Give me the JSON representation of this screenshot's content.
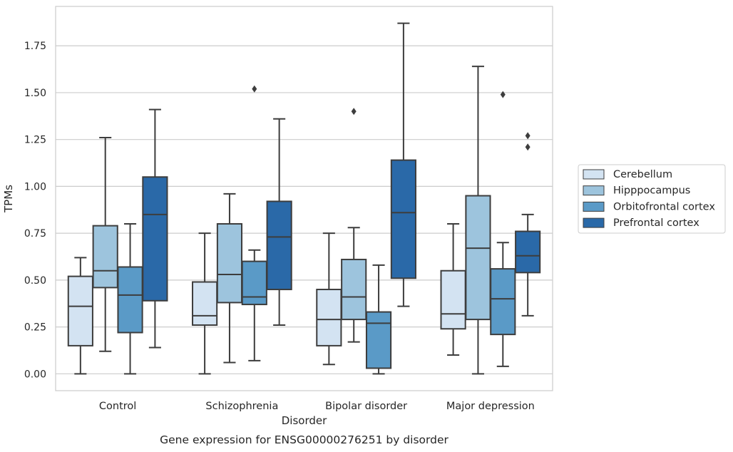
{
  "chart_data": {
    "type": "box",
    "caption": "Gene expression for ENSG00000276251 by disorder",
    "xlabel": "Disorder",
    "ylabel": "TPMs",
    "ylim": [
      -0.09,
      1.96
    ],
    "yticks": [
      "0.00",
      "0.25",
      "0.50",
      "0.75",
      "1.00",
      "1.25",
      "1.50",
      "1.75"
    ],
    "grid": "horizontal",
    "legend_position": "right",
    "categories": [
      "Control",
      "Schizophrenia",
      "Bipolar disorder",
      "Major depression"
    ],
    "series": [
      {
        "name": "Cerebellum",
        "color": "#d3e3f2",
        "boxes": [
          {
            "whislo": 0.0,
            "q1": 0.15,
            "med": 0.36,
            "q3": 0.52,
            "whishi": 0.62,
            "fliers": []
          },
          {
            "whislo": 0.0,
            "q1": 0.26,
            "med": 0.31,
            "q3": 0.49,
            "whishi": 0.75,
            "fliers": []
          },
          {
            "whislo": 0.05,
            "q1": 0.15,
            "med": 0.29,
            "q3": 0.45,
            "whishi": 0.75,
            "fliers": []
          },
          {
            "whislo": 0.1,
            "q1": 0.24,
            "med": 0.32,
            "q3": 0.55,
            "whishi": 0.8,
            "fliers": []
          }
        ]
      },
      {
        "name": "Hipppocampus",
        "color": "#9dc4dd",
        "boxes": [
          {
            "whislo": 0.12,
            "q1": 0.46,
            "med": 0.55,
            "q3": 0.79,
            "whishi": 1.26,
            "fliers": []
          },
          {
            "whislo": 0.06,
            "q1": 0.38,
            "med": 0.53,
            "q3": 0.8,
            "whishi": 0.96,
            "fliers": []
          },
          {
            "whislo": 0.17,
            "q1": 0.29,
            "med": 0.41,
            "q3": 0.61,
            "whishi": 0.78,
            "fliers": [
              1.4
            ]
          },
          {
            "whislo": 0.0,
            "q1": 0.29,
            "med": 0.67,
            "q3": 0.95,
            "whishi": 1.64,
            "fliers": []
          }
        ]
      },
      {
        "name": "Orbitofrontal cortex",
        "color": "#5a9ac7",
        "boxes": [
          {
            "whislo": 0.0,
            "q1": 0.22,
            "med": 0.42,
            "q3": 0.57,
            "whishi": 0.8,
            "fliers": []
          },
          {
            "whislo": 0.07,
            "q1": 0.37,
            "med": 0.41,
            "q3": 0.6,
            "whishi": 0.66,
            "fliers": [
              1.52
            ]
          },
          {
            "whislo": 0.0,
            "q1": 0.03,
            "med": 0.27,
            "q3": 0.33,
            "whishi": 0.58,
            "fliers": []
          },
          {
            "whislo": 0.04,
            "q1": 0.21,
            "med": 0.4,
            "q3": 0.56,
            "whishi": 0.7,
            "fliers": [
              1.49
            ]
          }
        ]
      },
      {
        "name": "Prefrontal cortex",
        "color": "#2a69a8",
        "boxes": [
          {
            "whislo": 0.14,
            "q1": 0.39,
            "med": 0.85,
            "q3": 1.05,
            "whishi": 1.41,
            "fliers": []
          },
          {
            "whislo": 0.26,
            "q1": 0.45,
            "med": 0.73,
            "q3": 0.92,
            "whishi": 1.36,
            "fliers": []
          },
          {
            "whislo": 0.36,
            "q1": 0.51,
            "med": 0.86,
            "q3": 1.14,
            "whishi": 1.87,
            "fliers": []
          },
          {
            "whislo": 0.31,
            "q1": 0.54,
            "med": 0.63,
            "q3": 0.76,
            "whishi": 0.85,
            "fliers": [
              1.21,
              1.27
            ]
          }
        ]
      }
    ]
  }
}
